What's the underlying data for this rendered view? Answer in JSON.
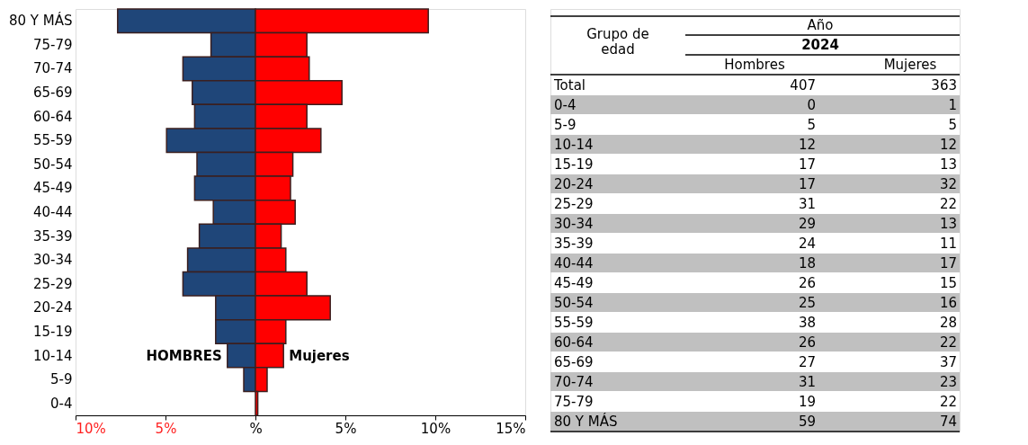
{
  "chart_data": {
    "type": "bar",
    "orientation": "horizontal",
    "stacked": true,
    "categories": [
      "80 Y MÁS",
      "75-79",
      "70-74",
      "65-69",
      "60-64",
      "55-59",
      "50-54",
      "45-49",
      "40-44",
      "35-39",
      "30-34",
      "25-29",
      "20-24",
      "15-19",
      "10-14",
      "5-9",
      "0-4"
    ],
    "series": [
      {
        "name": "HOMBRES",
        "color": "#1f4679",
        "values": [
          -7.66,
          -2.47,
          -4.03,
          -3.51,
          -3.38,
          -4.94,
          -3.25,
          -3.38,
          -2.34,
          -3.12,
          -3.77,
          -4.03,
          -2.21,
          -2.21,
          -1.56,
          -0.65,
          0
        ]
      },
      {
        "name": "Mujeres",
        "color": "#ff0000",
        "values": [
          9.61,
          2.86,
          2.99,
          4.81,
          2.86,
          3.64,
          2.08,
          1.95,
          2.21,
          1.43,
          1.69,
          2.86,
          4.16,
          1.69,
          1.56,
          0.65,
          0.13
        ]
      }
    ],
    "xlim": [
      -10,
      15
    ],
    "xticks": [
      {
        "value": -10,
        "label": "10%"
      },
      {
        "value": -5,
        "label": "5%"
      },
      {
        "value": 0,
        "label": "%"
      },
      {
        "value": 5,
        "label": "5%"
      },
      {
        "value": 10,
        "label": "10%"
      },
      {
        "value": 15,
        "label": "15%"
      }
    ],
    "grid": false,
    "annotations": [
      "Grupo de\nedad",
      "Año",
      "2024",
      "Hombres",
      "Mujeres",
      "Total",
      "407",
      "363",
      "0-4",
      "0",
      "1",
      "5-9",
      "5",
      "5",
      "10-14",
      "12",
      "12",
      "15-19",
      "17",
      "13",
      "20-24",
      "17",
      "32",
      "25-29",
      "31",
      "22",
      "30-34",
      "29",
      "13",
      "35-39",
      "24",
      "11",
      "40-44",
      "18",
      "17",
      "45-49",
      "26",
      "15",
      "50-54",
      "25",
      "16",
      "55-59",
      "38",
      "28",
      "60-64",
      "26",
      "22",
      "65-69",
      "27",
      "37",
      "70-74",
      "31",
      "23",
      "75-79",
      "19",
      "22",
      "80 Y MÁS",
      "59",
      "74"
    ]
  }
}
